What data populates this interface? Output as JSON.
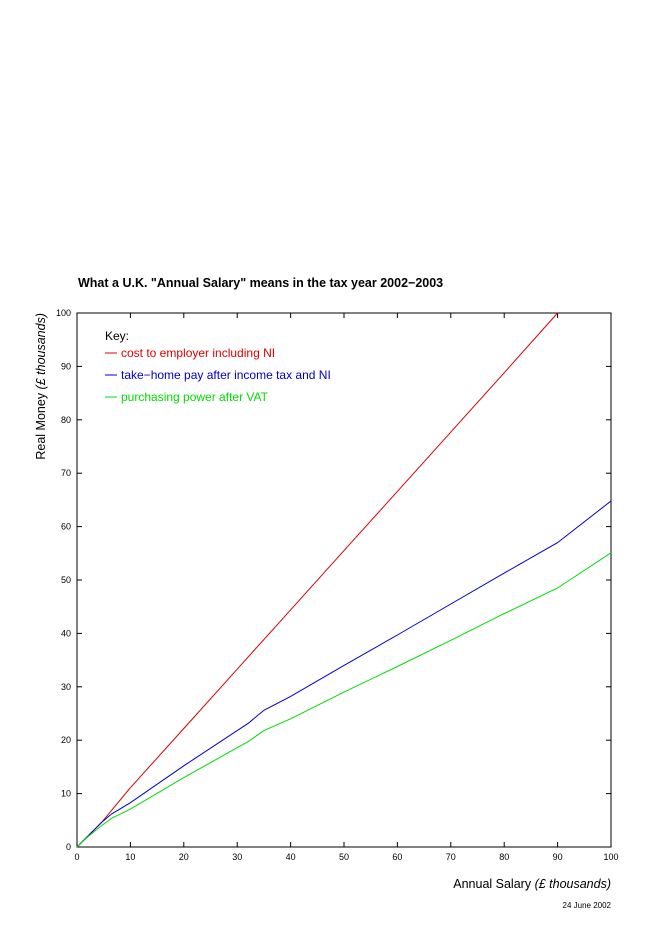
{
  "chart_data": {
    "type": "line",
    "title": "What a U.K. \"Annual Salary\" means in the tax year 2002−2003",
    "xlabel": {
      "main": "Annual Salary ",
      "italic": "(£ thousands)"
    },
    "ylabel": {
      "main": "Real Money ",
      "italic": "(£ thousands)"
    },
    "xlim": [
      0,
      100
    ],
    "ylim": [
      0,
      100
    ],
    "xticks": [
      0,
      10,
      20,
      30,
      40,
      50,
      60,
      70,
      80,
      90,
      100
    ],
    "yticks": [
      0,
      10,
      20,
      30,
      40,
      50,
      60,
      70,
      80,
      90,
      100
    ],
    "grid": false,
    "legend_position": "top-left",
    "legend_title": "Key:",
    "date": "24 June 2002",
    "series": [
      {
        "name": "cost to employer including NI",
        "color": "#dd0000",
        "x": [
          0,
          4.6,
          10,
          20,
          30,
          40,
          50,
          60,
          70,
          80,
          90
        ],
        "y": [
          0,
          4.6,
          11.1,
          22.2,
          33.3,
          44.4,
          55.5,
          66.6,
          77.7,
          88.8,
          100
        ]
      },
      {
        "name": "take−home pay after income tax and NI",
        "color": "#0000cc",
        "x": [
          0,
          1.9,
          4.6,
          6.5,
          10,
          20,
          30,
          32,
          35,
          40,
          50,
          60,
          70,
          80,
          90,
          100
        ],
        "y": [
          0,
          1.9,
          4.6,
          6.2,
          8.3,
          15.2,
          21.8,
          23.1,
          25.6,
          28.2,
          34.0,
          39.7,
          45.5,
          51.3,
          57.0,
          64.8
        ]
      },
      {
        "name": "purchasing power after VAT",
        "color": "#00dd00",
        "x": [
          0,
          1.9,
          4.6,
          6.5,
          10,
          20,
          30,
          32,
          35,
          40,
          50,
          60,
          70,
          80,
          90,
          100
        ],
        "y": [
          0,
          1.8,
          4.0,
          5.4,
          7.1,
          13.0,
          18.6,
          19.7,
          21.8,
          24.0,
          29.0,
          33.8,
          38.7,
          43.7,
          48.5,
          55.1
        ]
      }
    ]
  }
}
